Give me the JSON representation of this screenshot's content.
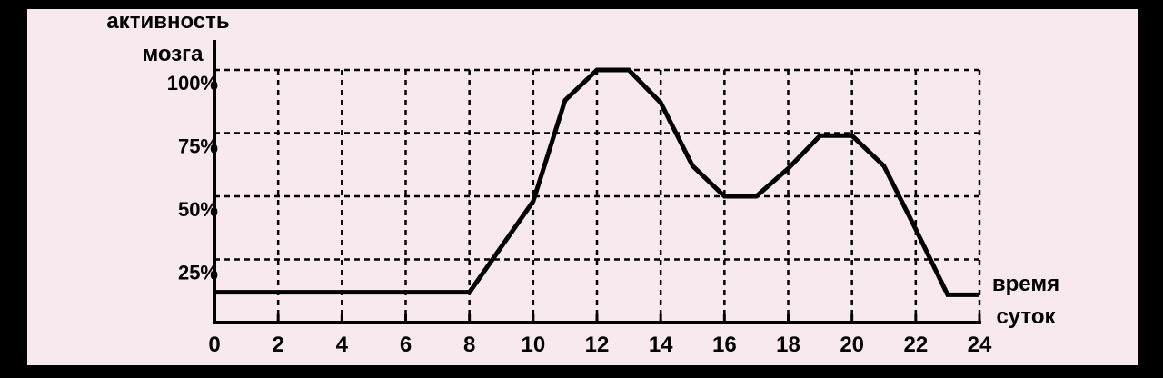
{
  "chart_data": {
    "type": "line",
    "title": "",
    "ylabel": [
      "активность",
      "мозга"
    ],
    "xlabel": [
      "время",
      "суток"
    ],
    "xlim": [
      0,
      24
    ],
    "ylim": [
      0,
      100
    ],
    "xticks": [
      0,
      2,
      4,
      6,
      8,
      10,
      12,
      14,
      16,
      18,
      20,
      22,
      24
    ],
    "xtick_labels": [
      "0",
      "2",
      "4",
      "6",
      "8",
      "10",
      "12",
      "14",
      "16",
      "18",
      "20",
      "22",
      "24"
    ],
    "yticks": [
      25,
      50,
      75,
      100
    ],
    "ytick_labels": [
      "25%",
      "50%",
      "75%",
      "100%"
    ],
    "grid": "dashed",
    "series": [
      {
        "x": [
          0,
          8,
          10,
          11,
          12,
          13,
          14,
          15,
          16,
          17,
          18,
          19,
          20,
          21,
          22,
          23,
          24
        ],
        "values": [
          12,
          12,
          48,
          88,
          100,
          100,
          87,
          62,
          50,
          50,
          61,
          74,
          74,
          62,
          37,
          11,
          11
        ]
      }
    ],
    "colors": {
      "line": "#000000",
      "background": "#f7e9ee"
    }
  }
}
